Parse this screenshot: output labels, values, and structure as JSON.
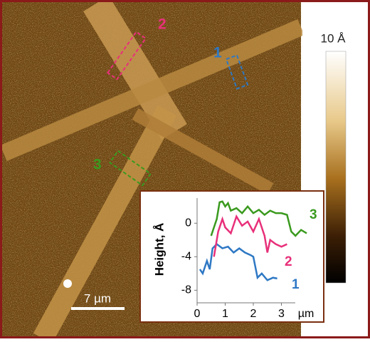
{
  "image": {
    "region_labels": [
      "1",
      "2",
      "3"
    ],
    "colorbar_label": "10 Å",
    "scalebar_label": "7 µm"
  },
  "chart_data": {
    "type": "line",
    "y_label": "Height, Å",
    "x_label": "µm",
    "xlim": [
      0,
      4
    ],
    "ylim": [
      -9.5,
      3
    ],
    "xticks": [
      0,
      1,
      2,
      3
    ],
    "yticks": [
      -8,
      -4,
      0
    ],
    "series": [
      {
        "name": "1",
        "color": "#2e78c4",
        "x": [
          0.1,
          0.2,
          0.35,
          0.45,
          0.55,
          0.7,
          0.9,
          1.1,
          1.3,
          1.5,
          1.7,
          1.9,
          2.0,
          2.15,
          2.3,
          2.5,
          2.7,
          2.85
        ],
        "values": [
          -5.5,
          -6.0,
          -4.5,
          -5.5,
          -3.0,
          -2.5,
          -3.0,
          -2.8,
          -3.5,
          -3.0,
          -3.5,
          -3.8,
          -4.0,
          -6.5,
          -6.0,
          -6.8,
          -6.5,
          -6.6
        ]
      },
      {
        "name": "2",
        "color": "#e8307a",
        "x": [
          0.6,
          0.75,
          0.9,
          1.0,
          1.2,
          1.4,
          1.6,
          1.8,
          2.0,
          2.2,
          2.4,
          2.5,
          2.6,
          2.8,
          3.0,
          3.2
        ],
        "values": [
          -4.0,
          -1.0,
          0.5,
          -0.5,
          -1.2,
          0.8,
          -0.3,
          0.2,
          -1.0,
          0.5,
          -1.5,
          -3.5,
          -2.0,
          -2.5,
          -2.8,
          -2.5
        ]
      },
      {
        "name": "3",
        "color": "#3a9a1e",
        "x": [
          0.5,
          0.6,
          0.7,
          0.8,
          0.9,
          1.0,
          1.1,
          1.2,
          1.4,
          1.6,
          1.8,
          2.0,
          2.2,
          2.4,
          2.6,
          2.8,
          3.0,
          3.2,
          3.35,
          3.5,
          3.7,
          3.9
        ],
        "values": [
          -1.5,
          -0.5,
          0.5,
          2.5,
          2.6,
          2.0,
          2.4,
          1.5,
          1.8,
          1.2,
          2.0,
          1.2,
          1.6,
          1.0,
          1.5,
          1.2,
          1.2,
          1.0,
          -1.0,
          -1.5,
          -0.8,
          -1.2
        ]
      }
    ]
  }
}
